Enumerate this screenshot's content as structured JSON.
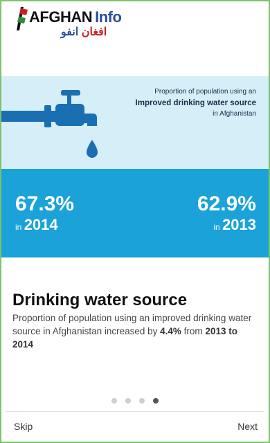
{
  "header": {
    "logo_text_1": "AFGHAN",
    "logo_text_2": "Info",
    "logo_arabic_1": "افغان",
    "logo_arabic_2": "انفو"
  },
  "infographic": {
    "caption_line1": "Proportion of population using an",
    "caption_line2": "Improved drinking water source",
    "caption_line3": "in Afghanistan",
    "stat_left_value": "67.3%",
    "stat_left_in": "in",
    "stat_left_year": "2014",
    "stat_right_value": "62.9%",
    "stat_right_in": "in",
    "stat_right_year": "2013",
    "colors": {
      "light_band": "#d5eef8",
      "stats_band": "#1aa2d9",
      "tap": "#1a6fb3"
    }
  },
  "content": {
    "title": "Drinking water source",
    "body_part1": "Proportion of population using an improved drinking water source in Afghanistan increased by ",
    "body_highlight1": "4.4%",
    "body_part2": " from ",
    "body_highlight2": "2013 to 2014"
  },
  "pager": {
    "total": 4,
    "active_index": 3
  },
  "nav": {
    "skip_label": "Skip",
    "next_label": "Next"
  }
}
